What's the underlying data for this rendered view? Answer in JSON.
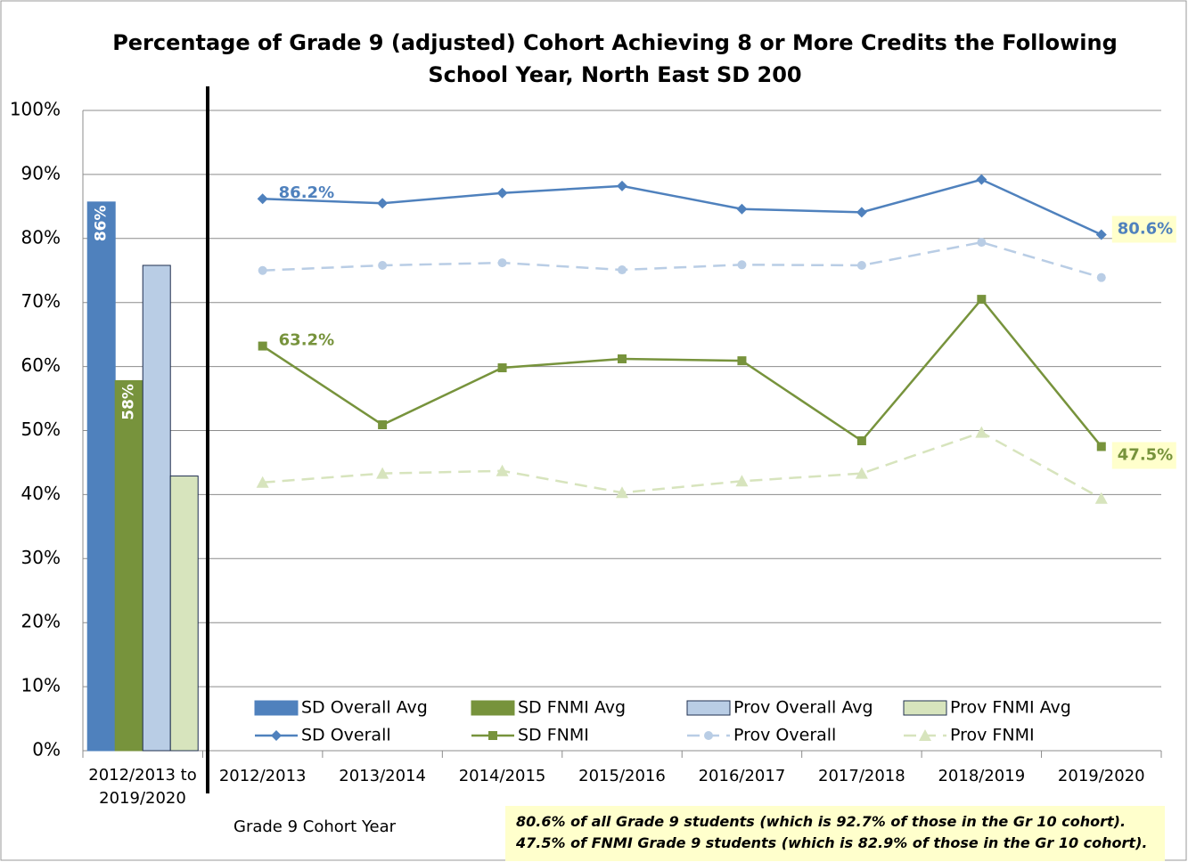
{
  "chart_data": {
    "type": "combo",
    "title": "Percentage of Grade 9 (adjusted) Cohort Achieving 8 or More Credits the Following School Year, North East SD 200",
    "x_label": "Grade 9 Cohort Year",
    "categories": [
      "2012/2013 to 2019/2020",
      "2012/2013",
      "2013/2014",
      "2014/2015",
      "2015/2016",
      "2016/2017",
      "2017/2018",
      "2018/2019",
      "2019/2020"
    ],
    "ylim": [
      0,
      100
    ],
    "yticks": [
      {
        "value": 0,
        "label": "0%"
      },
      {
        "value": 10,
        "label": "10%"
      },
      {
        "value": 20,
        "label": "20%"
      },
      {
        "value": 30,
        "label": "30%"
      },
      {
        "value": 40,
        "label": "40%"
      },
      {
        "value": 50,
        "label": "50%"
      },
      {
        "value": 60,
        "label": "60%"
      },
      {
        "value": 70,
        "label": "70%"
      },
      {
        "value": 80,
        "label": "80%"
      },
      {
        "value": 90,
        "label": "90%"
      },
      {
        "value": 100,
        "label": "100%"
      }
    ],
    "grid": true,
    "legend": "bottom",
    "series": [
      {
        "name": "SD Overall Avg",
        "type": "bar",
        "color": "#4f81bd",
        "values": [
          85.7,
          null,
          null,
          null,
          null,
          null,
          null,
          null,
          null
        ],
        "value_labels": [
          "86%",
          null,
          null,
          null,
          null,
          null,
          null,
          null,
          null
        ]
      },
      {
        "name": "SD FNMI Avg",
        "type": "bar",
        "color": "#77933c",
        "values": [
          57.8,
          null,
          null,
          null,
          null,
          null,
          null,
          null,
          null
        ],
        "value_labels": [
          "58%",
          null,
          null,
          null,
          null,
          null,
          null,
          null,
          null
        ]
      },
      {
        "name": "Prov Overall Avg",
        "type": "bar",
        "color": "#b9cde5",
        "values": [
          75.8,
          null,
          null,
          null,
          null,
          null,
          null,
          null,
          null
        ]
      },
      {
        "name": "Prov FNMI Avg",
        "type": "bar",
        "color": "#d7e4bd",
        "values": [
          42.9,
          null,
          null,
          null,
          null,
          null,
          null,
          null,
          null
        ]
      },
      {
        "name": "SD Overall",
        "type": "line",
        "color": "#4f81bd",
        "marker": "diamond",
        "dashed": false,
        "values": [
          null,
          86.2,
          85.5,
          87.1,
          88.2,
          84.6,
          84.1,
          89.2,
          80.6
        ],
        "value_labels": [
          null,
          "86.2%",
          null,
          null,
          null,
          null,
          null,
          null,
          "80.6%"
        ]
      },
      {
        "name": "SD FNMI",
        "type": "line",
        "color": "#77933c",
        "marker": "square",
        "dashed": false,
        "values": [
          null,
          63.2,
          50.9,
          59.8,
          61.2,
          60.9,
          48.4,
          70.5,
          47.5
        ],
        "value_labels": [
          null,
          "63.2%",
          null,
          null,
          null,
          null,
          null,
          null,
          "47.5%"
        ]
      },
      {
        "name": "Prov Overall",
        "type": "line",
        "color": "#b9cde5",
        "marker": "circle",
        "dashed": true,
        "values": [
          null,
          75.0,
          75.8,
          76.2,
          75.1,
          75.9,
          75.8,
          79.4,
          73.9
        ]
      },
      {
        "name": "Prov FNMI",
        "type": "line",
        "color": "#d7e4bd",
        "marker": "triangle",
        "dashed": true,
        "values": [
          null,
          41.9,
          43.3,
          43.7,
          40.3,
          42.1,
          43.3,
          49.7,
          39.4
        ]
      }
    ],
    "annotations": [
      "80.6% of all Grade 9 students (which is 92.7% of those in the Gr 10 cohort).",
      "47.5% of FNMI Grade 9 students (which is 82.9% of those in the Gr 10 cohort)."
    ]
  }
}
